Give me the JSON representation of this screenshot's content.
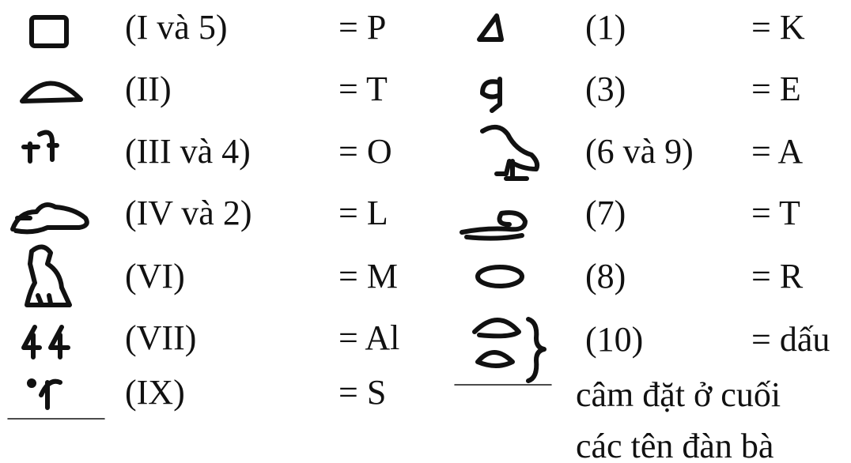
{
  "left": {
    "rows": [
      {
        "ref": "(I và 5)",
        "value": "= P"
      },
      {
        "ref": "(II)",
        "value": "= T"
      },
      {
        "ref": "(III và 4)",
        "value": "= O"
      },
      {
        "ref": "(IV và 2)",
        "value": "= L"
      },
      {
        "ref": "(VI)",
        "value": "= M"
      },
      {
        "ref": "(VII)",
        "value": "= Al"
      },
      {
        "ref": "(IX)",
        "value": "= S"
      }
    ]
  },
  "right": {
    "rows": [
      {
        "ref": "(1)",
        "value": "= K"
      },
      {
        "ref": "(3)",
        "value": "= E"
      },
      {
        "ref": "(6 và 9)",
        "value": "= A"
      },
      {
        "ref": "(7)",
        "value": "= T"
      },
      {
        "ref": "(8)",
        "value": "= R"
      },
      {
        "ref": "(10)",
        "value": "= dấu"
      }
    ],
    "note": [
      "câm đặt ở cuối",
      "các tên đàn bà"
    ]
  }
}
